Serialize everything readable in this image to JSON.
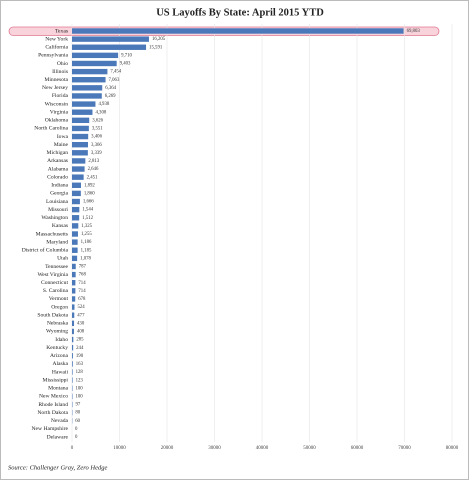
{
  "chart_data": {
    "type": "bar",
    "orientation": "horizontal",
    "title": "US Layoffs By State: April 2015 YTD",
    "source": "Source: Challenger Gray, Zero Hedge",
    "categories": [
      "Texas",
      "New York",
      "California",
      "Pennsylvania",
      "Ohio",
      "Illinois",
      "Minnesota",
      "New Jersey",
      "Florida",
      "Wisconsin",
      "Virginia",
      "Oklahoma",
      "North Carolina",
      "Iowa",
      "Maine",
      "Michigan",
      "Arkansas",
      "Alabama",
      "Colorado",
      "Indiana",
      "Georgia",
      "Louisiana",
      "Missouri",
      "Washington",
      "Kansas",
      "Massachusetts",
      "Maryland",
      "District of Columbia",
      "Utah",
      "Tennessee",
      "West Virginia",
      "Connecticut",
      "S. Carolina",
      "Vermont",
      "Oregon",
      "South Dakota",
      "Nebraska",
      "Wyoming",
      "Idaho",
      "Kentucky",
      "Arizona",
      "Alaska",
      "Hawaii",
      "Mississippi",
      "Montana",
      "New Mexico",
      "Rhode Island",
      "North Dakota",
      "Nevada",
      "New Hampshire",
      "Delaware"
    ],
    "values": [
      69803,
      16205,
      15591,
      9710,
      9403,
      7454,
      7063,
      6364,
      6269,
      4938,
      4308,
      3626,
      3551,
      3406,
      3366,
      3339,
      2813,
      2646,
      2451,
      1892,
      1860,
      1666,
      1544,
      1512,
      1325,
      1255,
      1186,
      1185,
      1078,
      787,
      768,
      714,
      714,
      678,
      524,
      477,
      430,
      408,
      285,
      244,
      190,
      163,
      128,
      123,
      100,
      100,
      97,
      80,
      60,
      0,
      0
    ],
    "value_labels": [
      "69,803",
      "16,205",
      "15,591",
      "9,710",
      "9,403",
      "7,454",
      "7,063",
      "6,364",
      "6,269",
      "4,938",
      "4,308",
      "3,626",
      "3,551",
      "3,406",
      "3,366",
      "3,339",
      "2,813",
      "2,646",
      "2,451",
      "1,892",
      "1,860",
      "1,666",
      "1,544",
      "1,512",
      "1,325",
      "1,255",
      "1,186",
      "1,185",
      "1,078",
      "787",
      "768",
      "714",
      "714",
      "678",
      "524",
      "477",
      "430",
      "408",
      "285",
      "244",
      "190",
      "163",
      "128",
      "123",
      "100",
      "100",
      "97",
      "80",
      "60",
      "0",
      "0"
    ],
    "color": "#4a78b8",
    "xlim": [
      0,
      80000
    ],
    "xticks": [
      0,
      10000,
      20000,
      30000,
      40000,
      50000,
      60000,
      70000,
      80000
    ],
    "grid": true
  }
}
